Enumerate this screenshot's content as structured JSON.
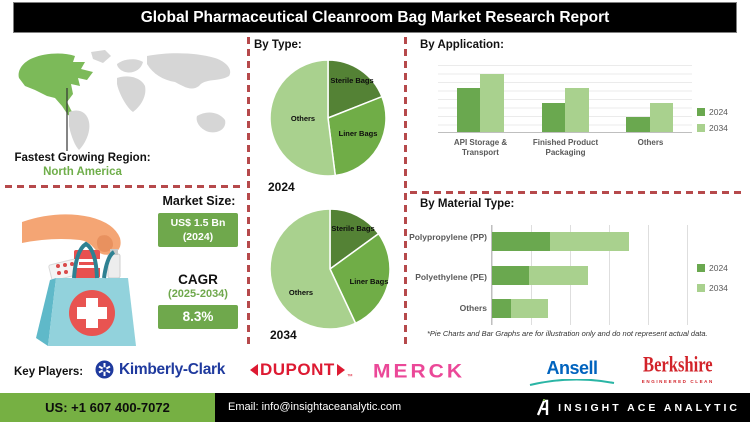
{
  "title": "Global Pharmaceutical Cleanroom Bag Market Research Report",
  "region": {
    "label": "Fastest Growing Region:",
    "value": "North America"
  },
  "market_size": {
    "heading": "Market Size:",
    "value_line1": "US$ 1.5 Bn",
    "value_line2": "(2024)",
    "cagr_label": "CAGR",
    "cagr_period": "(2025-2034)",
    "cagr_value": "8.3%"
  },
  "sections": {
    "by_type": "By Type:",
    "by_application": "By Application:",
    "by_material": "By Material Type:"
  },
  "footnote": "*Pie Charts and Bar Graphs are for illustration only and do not represent actual data.",
  "key_players": {
    "label": "Key Players:",
    "companies": [
      "Kimberly-Clark",
      "DUPONT",
      "MERCK",
      "Ansell",
      "Berkshire"
    ],
    "dupont_tm": "™",
    "berkshire_tagline": "ENGINEERED CLEAN"
  },
  "footer": {
    "phone": "US: +1 607 400-7072",
    "email": "Email: info@insightaceanalytic.com",
    "brand": "INSIGHT ACE ANALYTIC"
  },
  "colors": {
    "green_dark": "#548235",
    "green_mid": "#70AD47",
    "green_light": "#A9D18E",
    "series_2024": "#6AA84F",
    "series_2034": "#A9D18E",
    "accent_red_dash": "#B6494B",
    "box_green": "#6FA84C",
    "footer_green": "#76B043",
    "map_gray": "#D6D6D6",
    "map_green": "#7CBA59"
  },
  "chart_data": [
    {
      "type": "pie",
      "id": "by-type-2024",
      "year_label": "2024",
      "slices": [
        {
          "label": "Sterile Bags",
          "value": 19,
          "color": "#548235"
        },
        {
          "label": "Liner Bags",
          "value": 29,
          "color": "#70AD47"
        },
        {
          "label": "Others",
          "value": 52,
          "color": "#A9D18E"
        }
      ]
    },
    {
      "type": "pie",
      "id": "by-type-2034",
      "year_label": "2034",
      "slices": [
        {
          "label": "Sterile Bags",
          "value": 15,
          "color": "#548235"
        },
        {
          "label": "Liner Bags",
          "value": 28,
          "color": "#70AD47"
        },
        {
          "label": "Others",
          "value": 57,
          "color": "#A9D18E"
        }
      ]
    },
    {
      "type": "bar",
      "id": "by-application",
      "title": "By Application:",
      "categories": [
        "API Storage &\nTransport",
        "Finished Product\nPackaging",
        "Others"
      ],
      "series": [
        {
          "name": "2024",
          "color": "#6AA84F",
          "values": [
            66,
            43,
            22
          ]
        },
        {
          "name": "2034",
          "color": "#A9D18E",
          "values": [
            87,
            66,
            44
          ]
        }
      ],
      "ylim": [
        0,
        100
      ],
      "grid": true,
      "legend_position": "right",
      "note": "illustrative only"
    },
    {
      "type": "stacked-hbar",
      "id": "by-material",
      "title": "By Material Type:",
      "categories": [
        "Polypropylene (PP)",
        "Polyethylene (PE)",
        "Others"
      ],
      "series": [
        {
          "name": "2024",
          "color": "#6AA84F",
          "values": [
            25,
            16,
            8
          ]
        },
        {
          "name": "2034",
          "color": "#A9D18E",
          "values": [
            34,
            25,
            16
          ]
        }
      ],
      "xlim": [
        0,
        100
      ],
      "grid": true,
      "legend_position": "right",
      "note": "illustrative only"
    }
  ]
}
